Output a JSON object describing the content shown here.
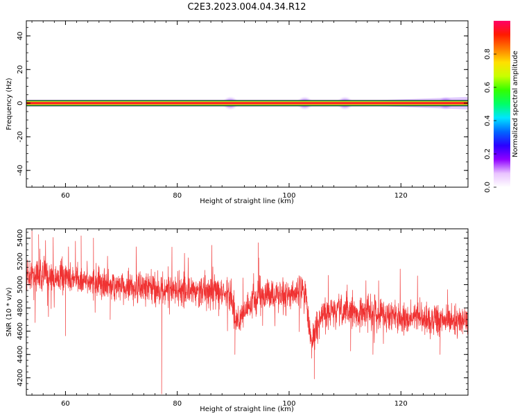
{
  "figure": {
    "title": "C2E3.2023.004.04.34.R12"
  },
  "chart_data": [
    {
      "type": "heatmap",
      "xlabel": "Height of straight line (km)",
      "ylabel": "Frequency (Hz)",
      "xlim": [
        53.0,
        132.0
      ],
      "ylim": [
        -50,
        49
      ],
      "xticks": [
        60,
        80,
        100,
        120
      ],
      "yticks": [
        -40,
        -20,
        0,
        20,
        40
      ],
      "grid": false,
      "band": {
        "center_frequency": 0,
        "description_of_layers": "narrow line at ~0 Hz: red core, yellow/green edges, purple halo, dark outline",
        "halo_bulges_km": [
          89.5,
          102.8,
          110.0,
          128.0
        ],
        "halo_growth_after_km": 115
      },
      "colorbar": {
        "label": "Normalized spectral amplitude",
        "ticks": [
          "0.0",
          "0.2",
          "0.4",
          "0.6",
          "0.8"
        ],
        "range": [
          0.0,
          1.0
        ],
        "colormap": [
          "#ffffff",
          "#e9c3ff",
          "#8f00ff",
          "#2a00ff",
          "#0066ff",
          "#00e5ff",
          "#00ff66",
          "#33ff00",
          "#c8ff00",
          "#ffe000",
          "#ff7a00",
          "#ff1a00",
          "#ff0066"
        ]
      }
    },
    {
      "type": "line",
      "xlabel": "Height of straight line (km)",
      "ylabel": "SNR (10 * v/v)",
      "xlim": [
        53.0,
        132.0
      ],
      "ylim": [
        4050,
        5480
      ],
      "xticks": [
        60,
        80,
        100,
        120
      ],
      "yticks": [
        4200,
        4400,
        4600,
        4800,
        5000,
        5200,
        5400
      ],
      "grid": false,
      "color": "#f03232",
      "series": [
        {
          "trend_x": [
            53,
            60,
            70,
            80,
            86,
            89.6,
            90.5,
            92,
            95,
            100,
            102.8,
            104,
            106,
            110,
            115,
            120,
            125,
            132
          ],
          "trend_y": [
            5080,
            5060,
            4980,
            4950,
            4940,
            4920,
            4660,
            4780,
            4920,
            4900,
            4980,
            4500,
            4750,
            4770,
            4760,
            4720,
            4700,
            4690
          ],
          "noise_amplitude": 130,
          "spikes": [
            {
              "x": 54.0,
              "y": 5470
            },
            {
              "x": 55.2,
              "y": 5430
            },
            {
              "x": 62.8,
              "y": 5420
            },
            {
              "x": 65.0,
              "y": 5400
            },
            {
              "x": 60.0,
              "y": 4560
            },
            {
              "x": 68.0,
              "y": 4700
            },
            {
              "x": 77.2,
              "y": 4060
            },
            {
              "x": 94.5,
              "y": 5360
            },
            {
              "x": 90.3,
              "y": 4400
            },
            {
              "x": 104.5,
              "y": 4190
            },
            {
              "x": 107.0,
              "y": 5080
            },
            {
              "x": 111.0,
              "y": 4430
            },
            {
              "x": 115.0,
              "y": 4400
            },
            {
              "x": 127.0,
              "y": 4400
            }
          ]
        }
      ]
    }
  ]
}
